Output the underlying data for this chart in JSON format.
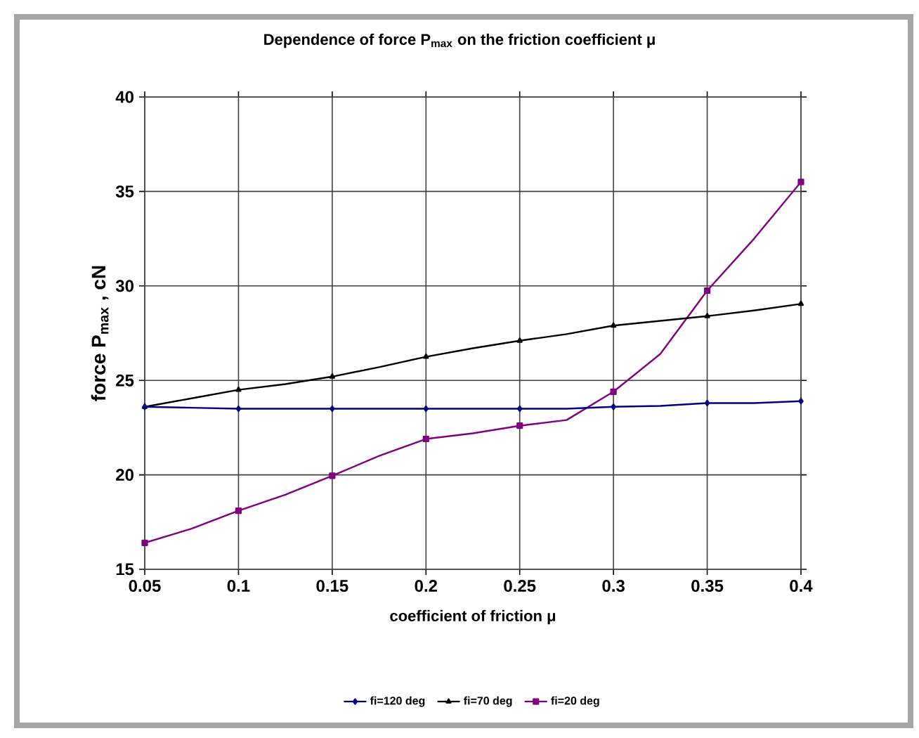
{
  "chart_data": {
    "type": "line",
    "title": "Dependence of force P$_{max}$ on the friction coefficient μ",
    "xlabel": "coefficient of friction μ",
    "ylabel": "force P$_{max}$ , cN",
    "x": [
      0.05,
      0.075,
      0.1,
      0.125,
      0.15,
      0.175,
      0.2,
      0.225,
      0.25,
      0.275,
      0.3,
      0.325,
      0.35,
      0.375,
      0.4
    ],
    "series": [
      {
        "name": "fi=120 deg",
        "color": "#000080",
        "marker": "diamond",
        "values": [
          23.6,
          23.55,
          23.5,
          23.5,
          23.5,
          23.5,
          23.5,
          23.5,
          23.5,
          23.5,
          23.6,
          23.65,
          23.8,
          23.8,
          23.9
        ]
      },
      {
        "name": "fi=70 deg",
        "color": "#000000",
        "marker": "triangle",
        "values": [
          23.6,
          24.05,
          24.5,
          24.8,
          25.2,
          25.7,
          26.25,
          26.7,
          27.1,
          27.45,
          27.9,
          28.15,
          28.4,
          28.7,
          29.05
        ]
      },
      {
        "name": "fi=20 deg",
        "color": "#800080",
        "marker": "square",
        "values": [
          16.4,
          17.15,
          18.1,
          18.95,
          19.95,
          21.0,
          21.9,
          22.2,
          22.6,
          22.9,
          24.4,
          26.4,
          29.75,
          32.5,
          35.5
        ]
      }
    ],
    "xlim": [
      0.05,
      0.4
    ],
    "ylim": [
      15,
      40
    ],
    "xticks": [
      0.05,
      0.1,
      0.15,
      0.2,
      0.25,
      0.3,
      0.35,
      0.4
    ],
    "yticks": [
      15,
      20,
      25,
      30,
      35,
      40
    ],
    "grid": true,
    "legend": "bottom",
    "line_style": "solid"
  }
}
